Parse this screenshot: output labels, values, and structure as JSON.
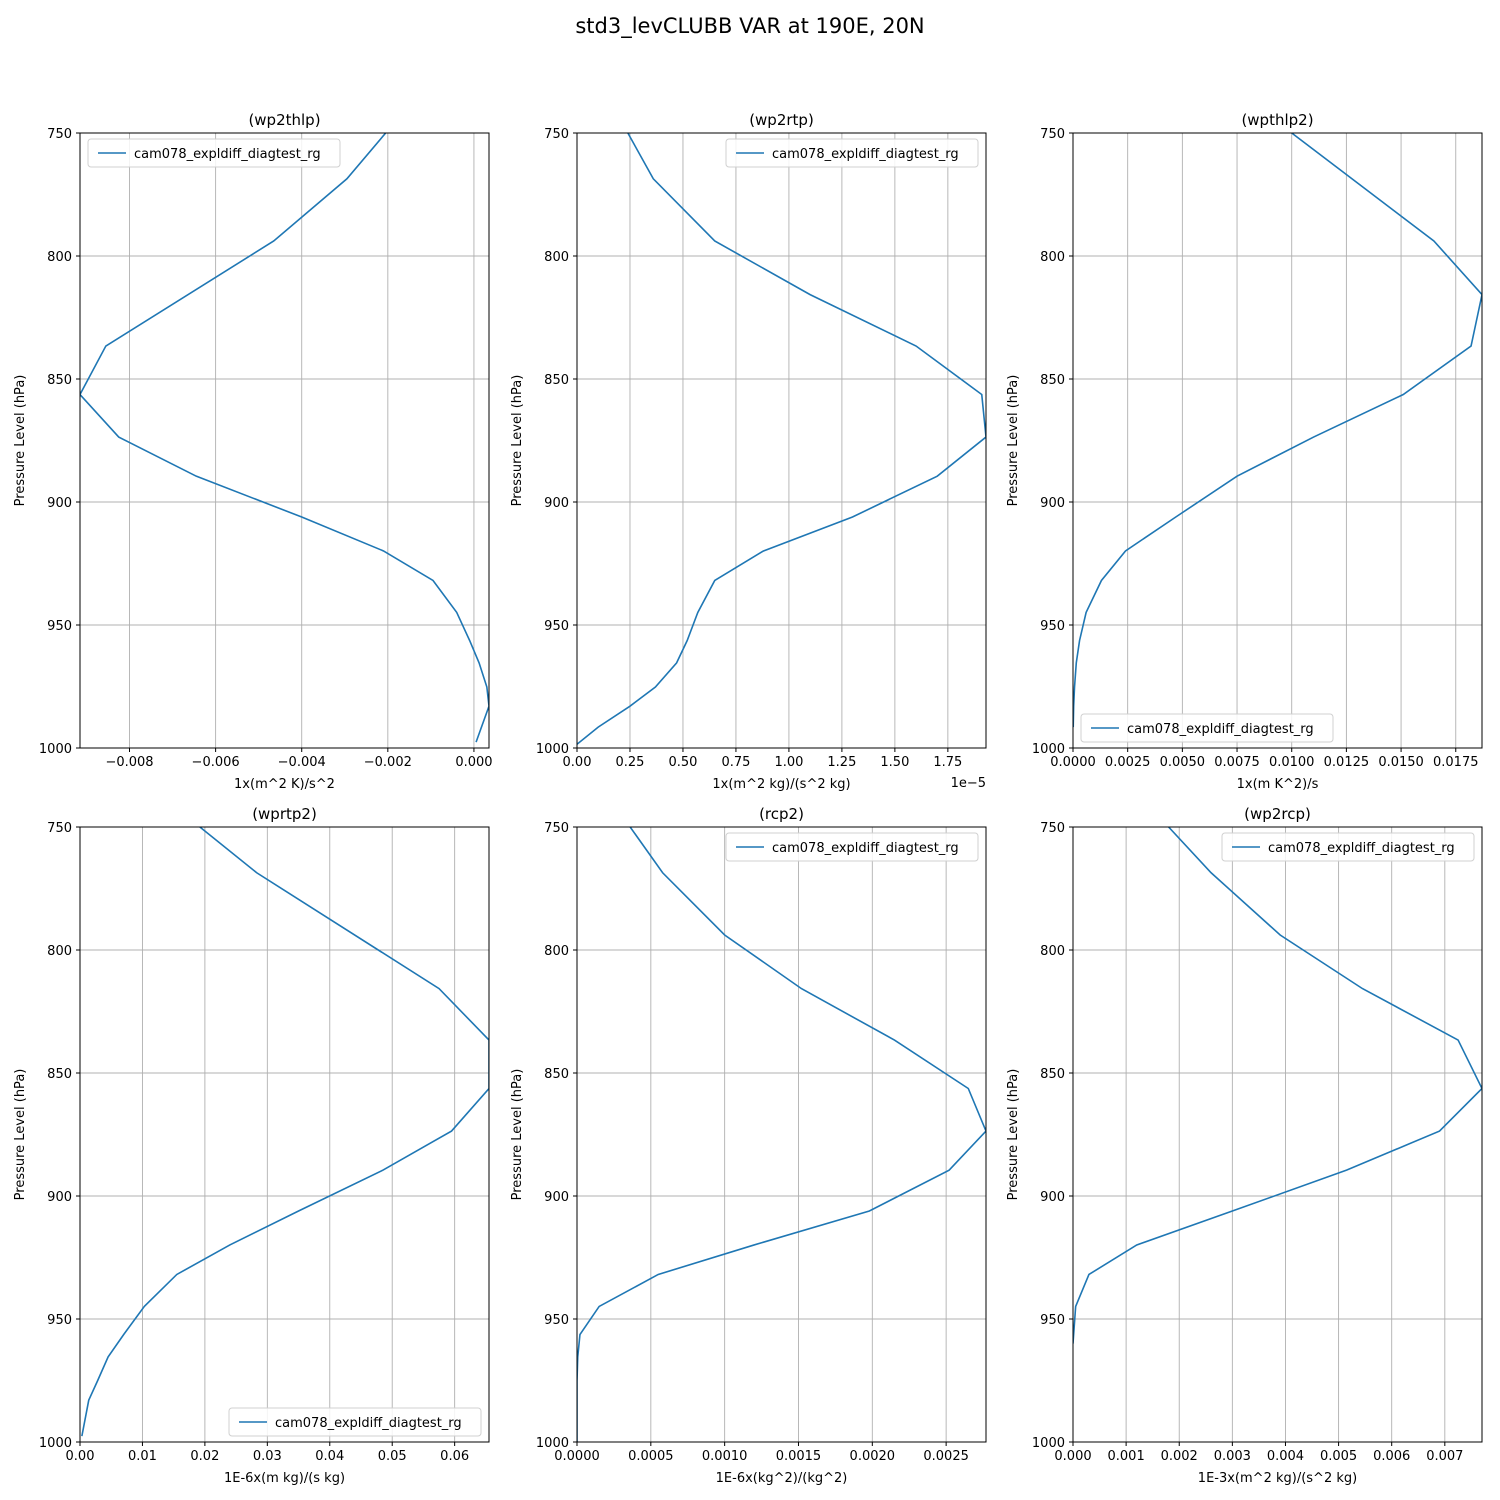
{
  "figure": {
    "suptitle": "std3_levCLUBB VAR at 190E, 20N",
    "line_color": "#1f77b4",
    "grid_color": "#b0b0b0"
  },
  "chart_data": [
    {
      "type": "line",
      "title": "(wp2thlp)",
      "xlabel": "1x(m^2 K)/s^2",
      "ylabel": "Pressure Level (hPa)",
      "offset_label": "",
      "legend": "upper left",
      "xlim": [
        -0.00915,
        0.00035
      ],
      "ylim": [
        1000,
        750
      ],
      "xticks": [
        -0.008,
        -0.006,
        -0.004,
        -0.002,
        0.0
      ],
      "xtick_labels": [
        "−0.008",
        "−0.006",
        "−0.004",
        "−0.002",
        "0.000"
      ],
      "yticks": [
        750,
        800,
        850,
        900,
        950,
        1000
      ],
      "ytick_labels": [
        "750",
        "800",
        "850",
        "900",
        "950",
        "1000"
      ],
      "series": [
        {
          "name": "cam078_expldiff_diagtest_rg",
          "x": [
            -0.00205,
            -0.00295,
            -0.00465,
            -0.00855,
            -0.00915,
            -0.00825,
            -0.00645,
            -0.004,
            -0.0021,
            -0.00095,
            -0.0004,
            -0.0001,
            0.00012,
            0.0003,
            0.00035,
            5e-05
          ],
          "y": [
            750,
            768.6,
            793.9,
            836.6,
            856.3,
            873.6,
            889.5,
            906.1,
            919.9,
            931.9,
            944.9,
            956.3,
            965.4,
            975.2,
            983.0,
            997.6
          ]
        }
      ]
    },
    {
      "type": "line",
      "title": "(wp2rtp)",
      "xlabel": "1x(m^2 kg)/(s^2 kg)",
      "ylabel": "Pressure Level (hPa)",
      "offset_label": "1e−5",
      "legend": "upper right",
      "xlim": [
        0.0,
        1.93e-05
      ],
      "ylim": [
        1000,
        750
      ],
      "xticks": [
        0,
        2.5e-06,
        5e-06,
        7.5e-06,
        1e-05,
        1.25e-05,
        1.5e-05,
        1.75e-05
      ],
      "xtick_labels": [
        "0.00",
        "0.25",
        "0.50",
        "0.75",
        "1.00",
        "1.25",
        "1.50",
        "1.75"
      ],
      "yticks": [
        750,
        800,
        850,
        900,
        950,
        1000
      ],
      "ytick_labels": [
        "750",
        "800",
        "850",
        "900",
        "950",
        "1000"
      ],
      "series": [
        {
          "name": "cam078_expldiff_diagtest_rg",
          "x": [
            2.4e-06,
            3.6e-06,
            6.5e-06,
            1.1e-05,
            1.6e-05,
            1.91e-05,
            1.93e-05,
            1.7e-05,
            1.3e-05,
            8.8e-06,
            6.5e-06,
            5.7e-06,
            5.2e-06,
            4.7e-06,
            3.7e-06,
            2.5e-06,
            1e-06,
            0.0
          ],
          "y": [
            750,
            768.6,
            793.9,
            815.7,
            836.6,
            856.3,
            873.6,
            889.5,
            906.1,
            919.9,
            931.9,
            944.9,
            956.3,
            965.4,
            975.2,
            983.0,
            991.5,
            998.5
          ]
        }
      ]
    },
    {
      "type": "line",
      "title": "(wpthlp2)",
      "xlabel": "1x(m K^2)/s",
      "ylabel": "Pressure Level (hPa)",
      "offset_label": "",
      "legend": "lower left",
      "xlim": [
        0.0,
        0.0187
      ],
      "ylim": [
        1000,
        750
      ],
      "xticks": [
        0.0,
        0.0025,
        0.005,
        0.0075,
        0.01,
        0.0125,
        0.015,
        0.0175
      ],
      "xtick_labels": [
        "0.0000",
        "0.0025",
        "0.0050",
        "0.0075",
        "0.0100",
        "0.0125",
        "0.0150",
        "0.0175"
      ],
      "yticks": [
        750,
        800,
        850,
        900,
        950,
        1000
      ],
      "ytick_labels": [
        "750",
        "800",
        "850",
        "900",
        "950",
        "1000"
      ],
      "series": [
        {
          "name": "cam078_expldiff_diagtest_rg",
          "x": [
            0.01,
            0.0165,
            0.0187,
            0.0182,
            0.0151,
            0.011,
            0.0075,
            0.0047,
            0.0024,
            0.0013,
            0.0006,
            0.0003,
            0.00015,
            7e-05,
            3e-05,
            1e-05
          ],
          "y": [
            750,
            793.9,
            815.7,
            836.6,
            856.3,
            873.6,
            889.5,
            906.1,
            919.9,
            931.9,
            944.9,
            956.3,
            965.4,
            975.2,
            983.0,
            991.5
          ]
        }
      ]
    },
    {
      "type": "line",
      "title": "(wprtp2)",
      "xlabel": "1E-6x(m kg)/(s kg)",
      "ylabel": "Pressure Level (hPa)",
      "offset_label": "",
      "legend": "lower right",
      "xlim": [
        0.0,
        0.0655
      ],
      "ylim": [
        1000,
        750
      ],
      "xticks": [
        0.0,
        0.01,
        0.02,
        0.03,
        0.04,
        0.05,
        0.06
      ],
      "xtick_labels": [
        "0.00",
        "0.01",
        "0.02",
        "0.03",
        "0.04",
        "0.05",
        "0.06"
      ],
      "yticks": [
        750,
        800,
        850,
        900,
        950,
        1000
      ],
      "ytick_labels": [
        "750",
        "800",
        "850",
        "900",
        "950",
        "1000"
      ],
      "series": [
        {
          "name": "cam078_expldiff_diagtest_rg",
          "x": [
            0.0192,
            0.0283,
            0.0575,
            0.0655,
            0.0655,
            0.0595,
            0.0485,
            0.035,
            0.024,
            0.0155,
            0.0103,
            0.007,
            0.0045,
            0.0028,
            0.0014,
            0.0003
          ],
          "y": [
            750,
            768.6,
            815.7,
            836.6,
            856.3,
            873.6,
            889.5,
            906.1,
            919.9,
            931.9,
            944.9,
            956.3,
            965.4,
            975.2,
            983.0,
            997.6
          ]
        }
      ]
    },
    {
      "type": "line",
      "title": "(rcp2)",
      "xlabel": "1E-6x(kg^2)/(kg^2)",
      "ylabel": "Pressure Level (hPa)",
      "offset_label": "",
      "legend": "upper right",
      "xlim": [
        0.0,
        0.00277
      ],
      "ylim": [
        1000,
        750
      ],
      "xticks": [
        0.0,
        0.0005,
        0.001,
        0.0015,
        0.002,
        0.0025
      ],
      "xtick_labels": [
        "0.0000",
        "0.0005",
        "0.0010",
        "0.0015",
        "0.0020",
        "0.0025"
      ],
      "yticks": [
        750,
        800,
        850,
        900,
        950,
        1000
      ],
      "ytick_labels": [
        "750",
        "800",
        "850",
        "900",
        "950",
        "1000"
      ],
      "series": [
        {
          "name": "cam078_expldiff_diagtest_rg",
          "x": [
            0.00036,
            0.00058,
            0.001,
            0.00152,
            0.00215,
            0.00265,
            0.00277,
            0.00252,
            0.00198,
            0.0012,
            0.00055,
            0.00015,
            2e-05,
            5e-06,
            0.0,
            0.0
          ],
          "y": [
            750,
            768.6,
            793.9,
            815.7,
            836.6,
            856.3,
            873.6,
            889.5,
            906.1,
            919.9,
            931.9,
            944.9,
            956.3,
            965.4,
            975.2,
            1000
          ]
        }
      ]
    },
    {
      "type": "line",
      "title": "(wp2rcp)",
      "xlabel": "1E-3x(m^2 kg)/(s^2 kg)",
      "ylabel": "Pressure Level (hPa)",
      "offset_label": "",
      "legend": "upper right",
      "xlim": [
        0.0,
        0.0077
      ],
      "ylim": [
        1000,
        750
      ],
      "xticks": [
        0.0,
        0.001,
        0.002,
        0.003,
        0.004,
        0.005,
        0.006,
        0.007
      ],
      "xtick_labels": [
        "0.000",
        "0.001",
        "0.002",
        "0.003",
        "0.004",
        "0.005",
        "0.006",
        "0.007"
      ],
      "yticks": [
        750,
        800,
        850,
        900,
        950,
        1000
      ],
      "ytick_labels": [
        "750",
        "800",
        "850",
        "900",
        "950",
        "1000"
      ],
      "series": [
        {
          "name": "cam078_expldiff_diagtest_rg",
          "x": [
            0.0018,
            0.0026,
            0.0039,
            0.00545,
            0.00725,
            0.0077,
            0.0069,
            0.00515,
            0.003,
            0.0012,
            0.0003,
            5e-05,
            0.0
          ],
          "y": [
            750,
            768.6,
            793.9,
            815.7,
            836.6,
            856.3,
            873.6,
            889.5,
            906.1,
            919.9,
            931.9,
            944.9,
            960
          ]
        }
      ]
    }
  ]
}
